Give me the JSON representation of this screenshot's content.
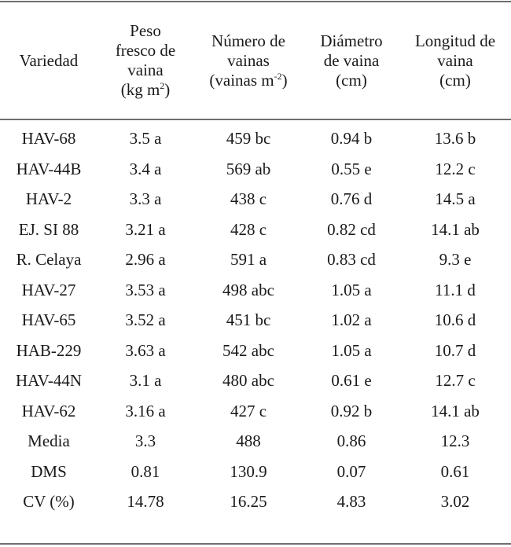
{
  "table": {
    "headers": [
      {
        "lines": [
          "Variedad"
        ]
      },
      {
        "lines": [
          "Peso",
          "fresco de",
          "vaina"
        ],
        "unit_prefix": "(kg m",
        "unit_sup": "2",
        "unit_suffix": ")"
      },
      {
        "lines": [
          "Número de",
          "vainas"
        ],
        "unit_prefix": "(vainas m",
        "unit_sup": "-2",
        "unit_suffix": ")"
      },
      {
        "lines": [
          "Diámetro",
          "de vaina",
          "(cm)"
        ]
      },
      {
        "lines": [
          "Longitud de",
          "vaina",
          "(cm)"
        ]
      }
    ],
    "rows": [
      [
        "HAV-68",
        "3.5 a",
        "459 bc",
        "0.94 b",
        "13.6 b"
      ],
      [
        "HAV-44B",
        "3.4 a",
        "569 ab",
        "0.55 e",
        "12.2 c"
      ],
      [
        "HAV-2",
        "3.3 a",
        "438 c",
        "0.76 d",
        "14.5 a"
      ],
      [
        "EJ. SI 88",
        "3.21 a",
        "428 c",
        "0.82 cd",
        "14.1 ab"
      ],
      [
        "R. Celaya",
        "2.96 a",
        "591 a",
        "0.83 cd",
        "9.3 e"
      ],
      [
        "HAV-27",
        "3.53 a",
        "498 abc",
        "1.05 a",
        "11.1 d"
      ],
      [
        "HAV-65",
        "3.52 a",
        "451 bc",
        "1.02 a",
        "10.6 d"
      ],
      [
        "HAB-229",
        "3.63 a",
        "542 abc",
        "1.05 a",
        "10.7 d"
      ],
      [
        "HAV-44N",
        "3.1 a",
        "480 abc",
        "0.61 e",
        "12.7 c"
      ],
      [
        "HAV-62",
        "3.16 a",
        "427 c",
        "0.92 b",
        "14.1 ab"
      ],
      [
        "Media",
        "3.3",
        "488",
        "0.86",
        "12.3"
      ],
      [
        "DMS",
        "0.81",
        "130.9",
        "0.07",
        "0.61"
      ],
      [
        "CV (%)",
        "14.78",
        "16.25",
        "4.83",
        "3.02"
      ]
    ]
  }
}
